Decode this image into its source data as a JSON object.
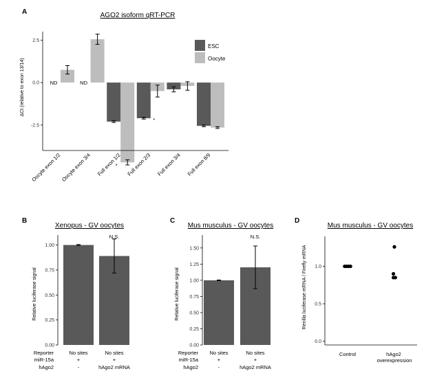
{
  "colors": {
    "dark": "#595959",
    "light": "#bdbdbd",
    "axis": "#000000",
    "marker": "#000000"
  },
  "chart_data": [
    {
      "panel": "A",
      "type": "bar",
      "title": "AGO2 isoform qRT-PCR",
      "ylabel": "ΔCt (relative to exon 13/14)",
      "xlabel": "",
      "ylim": [
        -4.0,
        3.0
      ],
      "yticks": [
        "2.5",
        "0.0",
        "-2.5"
      ],
      "categories": [
        "Oocyte exon 1/2",
        "Oocyte exon 3/4",
        "Full exon 1/2",
        "Full exon 2/3",
        "Full exon 3/4",
        "Full exon 8/9"
      ],
      "legend": [
        "ESC",
        "Oocyte"
      ],
      "legend_position": "top-right",
      "series": [
        {
          "name": "ESC",
          "values": [
            null,
            null,
            -2.3,
            -2.1,
            -0.4,
            -2.55
          ],
          "errors": [
            null,
            null,
            0.05,
            0.05,
            0.15,
            0.05
          ]
        },
        {
          "name": "Oocyte",
          "values": [
            0.75,
            2.55,
            -4.7,
            -0.5,
            -0.2,
            -2.65
          ],
          "errors": [
            0.25,
            0.3,
            0.15,
            0.35,
            0.25,
            0.05
          ]
        }
      ],
      "annotations": [
        {
          "text": "ND",
          "category": "Oocyte exon 1/2"
        },
        {
          "text": "ND",
          "category": "Oocyte exon 3/4"
        },
        {
          "text": "*",
          "category": "Full exon 1/2"
        },
        {
          "text": "*",
          "category": "Full exon 2/3"
        }
      ]
    },
    {
      "panel": "B",
      "type": "bar",
      "title": "Xenopus - GV oocytes",
      "ylabel": "Relative luciferase signal",
      "ylim": [
        0,
        1.1
      ],
      "yticks": [
        "0.00",
        "0.25",
        "0.50",
        "0.75",
        "1.00"
      ],
      "values": [
        1.0,
        0.89
      ],
      "errors": [
        0.005,
        0.17
      ],
      "significance": "N.S.",
      "table": {
        "row_labels": [
          "Reporter",
          "miR-15a",
          "hAgo2"
        ],
        "columns": [
          [
            "No sites",
            "+",
            "-"
          ],
          [
            "No sites",
            "+",
            "hAgo2 mRNA"
          ]
        ]
      }
    },
    {
      "panel": "C",
      "type": "bar",
      "title": "Mus musculus - GV oocytes",
      "ylabel": "Relative luciferase signal",
      "ylim": [
        0,
        1.7
      ],
      "yticks": [
        "0.00",
        "0.25",
        "0.50",
        "0.75",
        "1.00",
        "1.25",
        "1.50"
      ],
      "values": [
        1.0,
        1.2
      ],
      "errors": [
        0.005,
        0.33
      ],
      "significance": "N.S.",
      "table": {
        "row_labels": [
          "Reporter",
          "miR-15a",
          "hAgo2"
        ],
        "columns": [
          [
            "No sites",
            "+",
            "-"
          ],
          [
            "No sites",
            "+",
            "hAgo2 mRNA"
          ]
        ]
      }
    },
    {
      "panel": "D",
      "type": "scatter",
      "title": "Mus musculus - GV oocytes",
      "ylabel": "Renilla luciferase mRNA / Firefly mRNA",
      "ylim": [
        -0.05,
        1.4
      ],
      "yticks": [
        "0.0",
        "0.5",
        "1.0"
      ],
      "categories": [
        "Control",
        "hAgo2\noverexpression"
      ],
      "points": [
        {
          "category": 0,
          "offset": -0.06,
          "y": 1.0
        },
        {
          "category": 0,
          "offset": -0.02,
          "y": 1.0
        },
        {
          "category": 0,
          "offset": 0.02,
          "y": 1.0
        },
        {
          "category": 0,
          "offset": 0.06,
          "y": 1.0
        },
        {
          "category": 1,
          "offset": 0.0,
          "y": 1.26
        },
        {
          "category": 1,
          "offset": -0.02,
          "y": 0.9
        },
        {
          "category": 1,
          "offset": -0.02,
          "y": 0.85
        },
        {
          "category": 1,
          "offset": 0.02,
          "y": 0.85
        }
      ]
    }
  ]
}
